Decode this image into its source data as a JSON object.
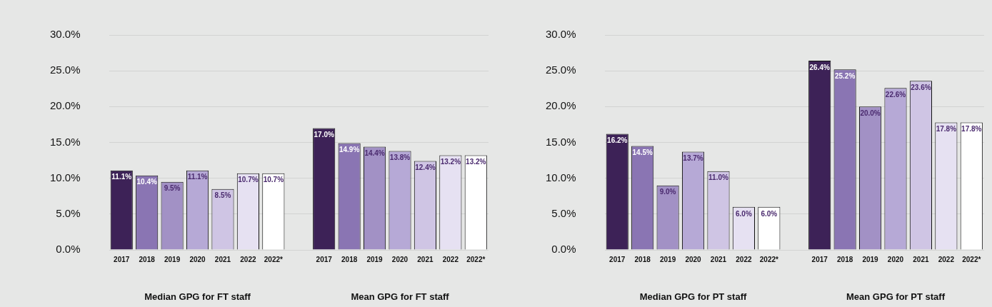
{
  "chart_data": [
    {
      "type": "bar",
      "categories": [
        "2017",
        "2018",
        "2019",
        "2020",
        "2021",
        "2022",
        "2022*",
        null,
        "2017",
        "2018",
        "2019",
        "2020",
        "2021",
        "2022",
        "2022*"
      ],
      "values": [
        11.1,
        10.4,
        9.5,
        11.1,
        8.5,
        10.7,
        10.7,
        null,
        17.0,
        14.9,
        14.4,
        13.8,
        12.4,
        13.2,
        13.2
      ],
      "colors": [
        "#3d2257",
        "#8a75b3",
        "#a291c5",
        "#b6a9d6",
        "#cfc5e4",
        "#e6e1f2",
        "#ffffff",
        null,
        "#3d2257",
        "#8a75b3",
        "#a291c5",
        "#b6a9d6",
        "#cfc5e4",
        "#e6e1f2",
        "#ffffff"
      ],
      "value_labels": [
        "11.1%",
        "10.4%",
        "9.5%",
        "11.1%",
        "8.5%",
        "10.7%",
        "10.7%",
        null,
        "17.0%",
        "14.9%",
        "14.4%",
        "13.8%",
        "12.4%",
        "13.2%",
        "13.2%"
      ],
      "ylim": [
        0,
        30
      ],
      "yticks": [
        {
          "value": 0,
          "label": "0.0%"
        },
        {
          "value": 5,
          "label": "5.0%"
        },
        {
          "value": 10,
          "label": "10.0%"
        },
        {
          "value": 15,
          "label": "15.0%"
        },
        {
          "value": 20,
          "label": "20.0%"
        },
        {
          "value": 25,
          "label": "25.0%"
        },
        {
          "value": 30,
          "label": "30.0%"
        }
      ],
      "grid": "y",
      "legend": false,
      "annotations": [
        "Median GPG for FT staff",
        "Mean GPG for FT staff"
      ]
    },
    {
      "type": "bar",
      "categories": [
        "2017",
        "2018",
        "2019",
        "2020",
        "2021",
        "2022",
        "2022*",
        null,
        "2017",
        "2018",
        "2019",
        "2020",
        "2021",
        "2022",
        "2022*"
      ],
      "values": [
        16.2,
        14.5,
        9.0,
        13.7,
        11.0,
        6.0,
        6.0,
        null,
        26.4,
        25.2,
        20.0,
        22.6,
        23.6,
        17.8,
        17.8
      ],
      "colors": [
        "#3d2257",
        "#8a75b3",
        "#a291c5",
        "#b6a9d6",
        "#cfc5e4",
        "#e6e1f2",
        "#ffffff",
        null,
        "#3d2257",
        "#8a75b3",
        "#a291c5",
        "#b6a9d6",
        "#cfc5e4",
        "#e6e1f2",
        "#ffffff"
      ],
      "value_labels": [
        "16.2%",
        "14.5%",
        "9.0%",
        "13.7%",
        "11.0%",
        "6.0%",
        "6.0%",
        null,
        "26.4%",
        "25.2%",
        "20.0%",
        "22.6%",
        "23.6%",
        "17.8%",
        "17.8%"
      ],
      "ylim": [
        0,
        30
      ],
      "yticks": [
        {
          "value": 0,
          "label": "0.0%"
        },
        {
          "value": 5,
          "label": "5.0%"
        },
        {
          "value": 10,
          "label": "10.0%"
        },
        {
          "value": 15,
          "label": "15.0%"
        },
        {
          "value": 20,
          "label": "20.0%"
        },
        {
          "value": 25,
          "label": "25.0%"
        },
        {
          "value": 30,
          "label": "30.0%"
        }
      ],
      "grid": "y",
      "legend": false,
      "annotations": [
        "Median GPG for PT staff",
        "Mean GPG for PT staff"
      ]
    }
  ]
}
